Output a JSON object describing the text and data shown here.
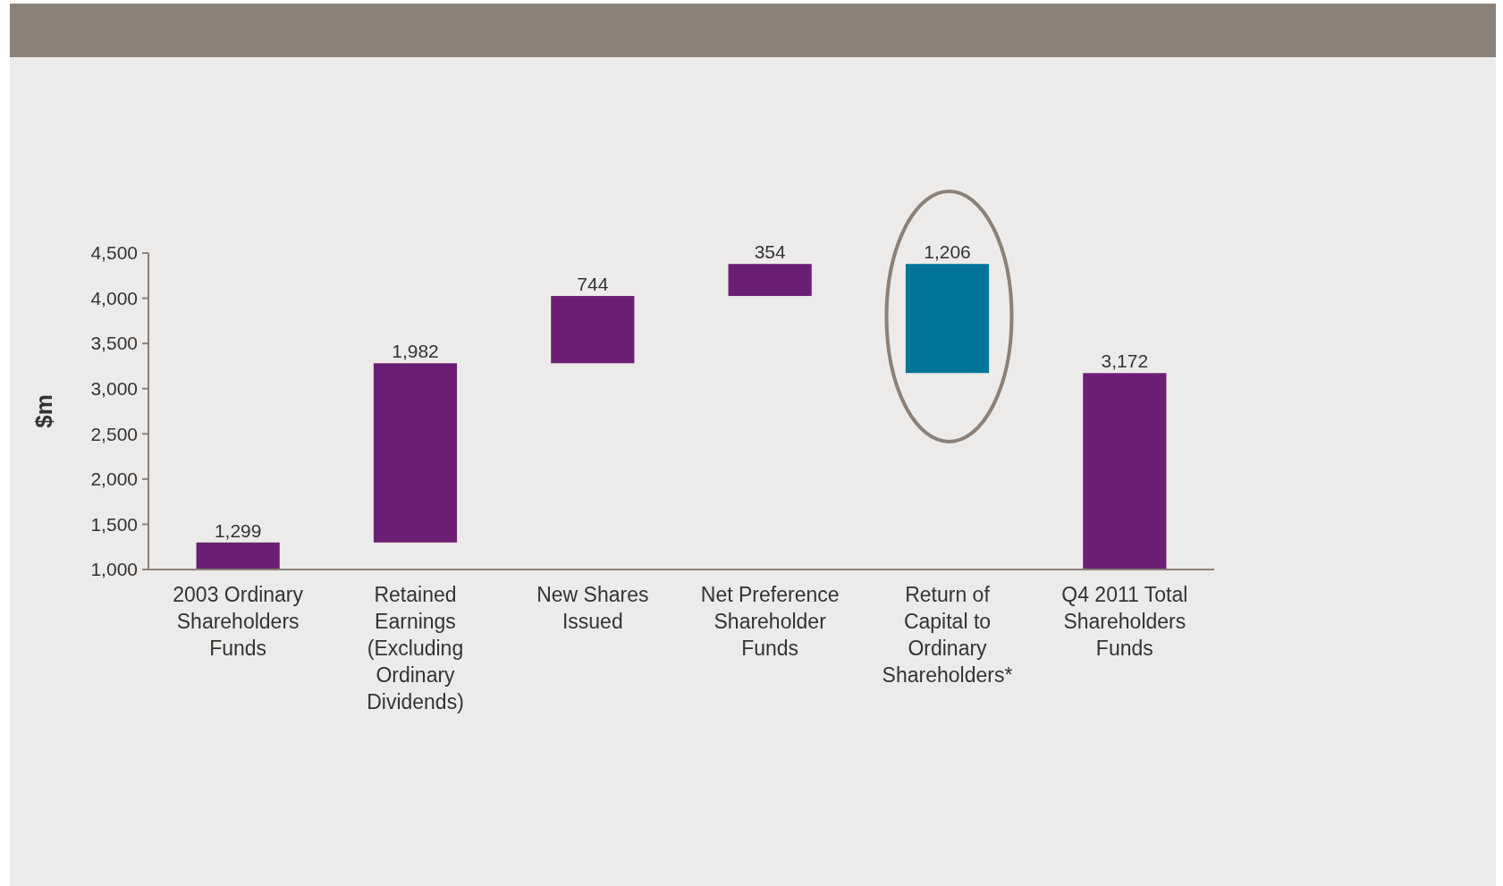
{
  "chart_data": {
    "type": "bar",
    "ylabel": "$m",
    "categories": [
      "2003 Ordinary Shareholders Funds",
      "Retained Earnings (Excluding Ordinary Dividends)",
      "New Shares Issued",
      "Net Preference Shareholder Funds",
      "Return of Capital to Ordinary Shareholders*",
      "Q4 2011 Total Shareholders Funds"
    ],
    "base": [
      1000,
      1299,
      3281,
      4025,
      3173,
      1000
    ],
    "values": [
      299,
      1982,
      744,
      354,
      1206,
      2172
    ],
    "value_labels": [
      "1,299",
      "1,982",
      "744",
      "354",
      "1,206",
      "3,172"
    ],
    "colors": [
      "#6b1f74",
      "#6b1f74",
      "#6b1f74",
      "#6b1f74",
      "#00759a",
      "#6b1f74"
    ],
    "ylim": [
      1000,
      4500
    ],
    "yticks": [
      {
        "value": 1000,
        "label": "1,000"
      },
      {
        "value": 1500,
        "label": "1,500"
      },
      {
        "value": 2000,
        "label": "2,000"
      },
      {
        "value": 2500,
        "label": "2,500"
      },
      {
        "value": 3000,
        "label": "3,000"
      },
      {
        "value": 3500,
        "label": "3,500"
      },
      {
        "value": 4000,
        "label": "4,000"
      },
      {
        "value": 4500,
        "label": "4,500"
      }
    ],
    "grid": false
  }
}
